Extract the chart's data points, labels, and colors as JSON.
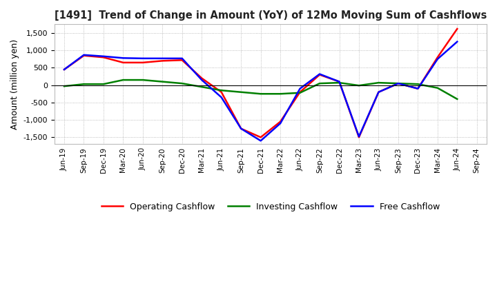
{
  "title": "[1491]  Trend of Change in Amount (YoY) of 12Mo Moving Sum of Cashflows",
  "ylabel": "Amount (million yen)",
  "ylim": [
    -1700,
    1750
  ],
  "yticks": [
    -1500,
    -1000,
    -500,
    0,
    500,
    1000,
    1500
  ],
  "background_color": "#ffffff",
  "plot_bg_color": "#ffffff",
  "grid_color": "#aaaaaa",
  "x_labels": [
    "Jun-19",
    "Sep-19",
    "Dec-19",
    "Mar-20",
    "Jun-20",
    "Sep-20",
    "Dec-20",
    "Mar-21",
    "Jun-21",
    "Sep-21",
    "Dec-21",
    "Mar-22",
    "Jun-22",
    "Sep-22",
    "Dec-22",
    "Mar-23",
    "Jun-23",
    "Sep-23",
    "Dec-23",
    "Mar-24",
    "Jun-24",
    "Sep-24"
  ],
  "operating_cashflow": [
    450,
    850,
    800,
    650,
    650,
    700,
    720,
    200,
    -200,
    -1250,
    -1500,
    -1050,
    -200,
    300,
    100,
    -1500,
    -200,
    50,
    -100,
    800,
    1620,
    null
  ],
  "investing_cashflow": [
    -30,
    30,
    30,
    150,
    150,
    100,
    50,
    -50,
    -150,
    -200,
    -250,
    -250,
    -220,
    50,
    70,
    -10,
    70,
    50,
    30,
    -80,
    -400,
    null
  ],
  "free_cashflow": [
    450,
    870,
    830,
    780,
    770,
    770,
    770,
    150,
    -350,
    -1250,
    -1600,
    -1100,
    -100,
    320,
    100,
    -1480,
    -200,
    50,
    -100,
    750,
    1250,
    null
  ],
  "op_color": "#ff0000",
  "inv_color": "#008000",
  "free_color": "#0000ff",
  "line_width": 1.8
}
